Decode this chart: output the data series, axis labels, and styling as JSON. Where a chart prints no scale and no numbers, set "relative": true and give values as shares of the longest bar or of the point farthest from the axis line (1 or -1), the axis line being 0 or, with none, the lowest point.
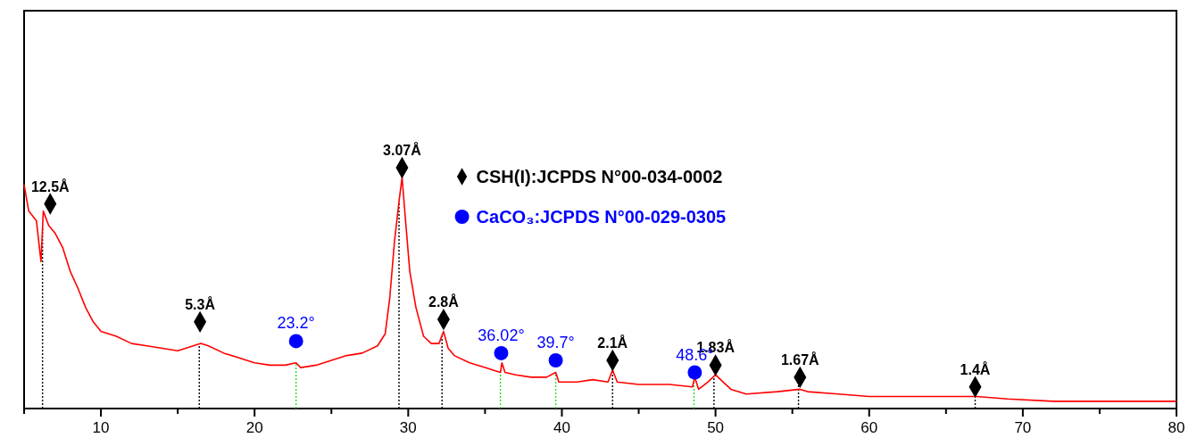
{
  "chart_data": {
    "type": "line",
    "relative": true,
    "xlim": [
      5,
      80
    ],
    "xticks": [
      {
        "value": 5,
        "label": null
      },
      10,
      {
        "value": 15,
        "label": null
      },
      20,
      {
        "value": 25,
        "label": null
      },
      30,
      {
        "value": 35,
        "label": null
      },
      40,
      {
        "value": 45,
        "label": null
      },
      50,
      {
        "value": 55,
        "label": null
      },
      60,
      {
        "value": 65,
        "label": null
      },
      70,
      {
        "value": 75,
        "label": null
      },
      80
    ],
    "grid": false,
    "legend": "top",
    "series": [
      {
        "color": "#ff0000",
        "x": [
          5,
          5.3,
          5.8,
          6.1,
          6.25,
          6.6,
          7,
          7.5,
          8,
          8.5,
          9,
          9.5,
          10,
          11,
          12,
          13,
          14,
          15,
          16,
          16.5,
          17,
          18,
          19,
          20,
          21,
          22,
          22.7,
          23,
          24,
          25,
          26,
          27,
          28,
          28.5,
          28.8,
          29.1,
          29.4,
          29.6,
          29.8,
          30.1,
          30.5,
          31,
          31.5,
          32,
          32.3,
          32.6,
          33,
          34,
          35,
          36,
          36.1,
          36.3,
          37,
          38,
          39,
          39.6,
          39.8,
          41,
          42,
          43,
          43.3,
          43.6,
          45,
          47,
          48.5,
          48.65,
          48.9,
          49.5,
          50,
          50.5,
          51,
          52,
          54,
          55.5,
          56,
          58,
          60,
          62,
          65,
          67,
          69,
          72,
          76,
          80
        ],
        "values": [
          0.93,
          0.82,
          0.78,
          0.61,
          0.82,
          0.76,
          0.73,
          0.67,
          0.57,
          0.5,
          0.42,
          0.36,
          0.32,
          0.3,
          0.27,
          0.26,
          0.25,
          0.24,
          0.26,
          0.27,
          0.26,
          0.23,
          0.21,
          0.19,
          0.18,
          0.18,
          0.19,
          0.17,
          0.18,
          0.2,
          0.22,
          0.23,
          0.26,
          0.31,
          0.46,
          0.69,
          0.86,
          0.96,
          0.8,
          0.57,
          0.42,
          0.3,
          0.27,
          0.27,
          0.32,
          0.25,
          0.22,
          0.19,
          0.17,
          0.15,
          0.19,
          0.15,
          0.14,
          0.13,
          0.13,
          0.15,
          0.11,
          0.11,
          0.12,
          0.11,
          0.16,
          0.11,
          0.1,
          0.1,
          0.09,
          0.13,
          0.08,
          0.11,
          0.14,
          0.11,
          0.08,
          0.06,
          0.07,
          0.08,
          0.07,
          0.06,
          0.05,
          0.05,
          0.05,
          0.05,
          0.04,
          0.03,
          0.03,
          0.03
        ]
      },
      {
        "type": "scatter",
        "name": "CSH(I):JCPDS N°00-034-0002",
        "color": "#000000",
        "marker": "diamond",
        "x": [
          6.7,
          16.45,
          29.6,
          32.3,
          43.3,
          50.0,
          55.5,
          66.9
        ],
        "values": [
          0.85,
          0.36,
          1,
          0.37,
          0.2,
          0.18,
          0.13,
          0.09
        ]
      },
      {
        "type": "scatter",
        "name": "CaCO₃:JCPDS N°00-029-0305",
        "color": "#0000ff",
        "marker": "circle",
        "x": [
          22.7,
          36.05,
          39.6,
          48.65
        ],
        "values": [
          0.28,
          0.23,
          0.2,
          0.15
        ]
      }
    ],
    "annotations": [
      {
        "text": "12.5Å",
        "x": 6.7,
        "y": 0.85
      },
      {
        "text": "5.3Å",
        "x": 16.45,
        "y": 0.36
      },
      {
        "text": "3.07Å",
        "x": 29.6,
        "y": 1
      },
      {
        "text": "2.8Å",
        "x": 32.3,
        "y": 0.37
      },
      {
        "text": "2.1Å",
        "x": 43.3,
        "y": 0.2
      },
      {
        "text": "1.83Å",
        "x": 50.0,
        "y": 0.18
      },
      {
        "text": "1.67Å",
        "x": 55.5,
        "y": 0.13
      },
      {
        "text": "1.4Å",
        "x": 66.9,
        "y": 0.09
      },
      {
        "text": "23.2°",
        "x": 22.7,
        "y": 0.28
      },
      {
        "text": "36.02°",
        "x": 36.05,
        "y": 0.23
      },
      {
        "text": "39.7°",
        "x": 39.6,
        "y": 0.2
      },
      {
        "text": "48.6°",
        "x": 48.65,
        "y": 0.15
      }
    ],
    "ref_lines": [
      {
        "axis": "x",
        "value": 6.2,
        "color": "#000000",
        "line_style": "dotted"
      },
      {
        "axis": "x",
        "value": 16.4,
        "color": "#000000",
        "line_style": "dotted"
      },
      {
        "axis": "x",
        "value": 29.4,
        "color": "#000000",
        "line_style": "dotted"
      },
      {
        "axis": "x",
        "value": 32.2,
        "color": "#000000",
        "line_style": "dotted"
      },
      {
        "axis": "x",
        "value": 43.3,
        "color": "#000000",
        "line_style": "dotted"
      },
      {
        "axis": "x",
        "value": 49.9,
        "color": "#000000",
        "line_style": "dotted"
      },
      {
        "axis": "x",
        "value": 55.4,
        "color": "#000000",
        "line_style": "dotted"
      },
      {
        "axis": "x",
        "value": 66.9,
        "color": "#000000",
        "line_style": "dotted"
      },
      {
        "axis": "x",
        "value": 22.7,
        "color": "#22dd22",
        "line_style": "dotted"
      },
      {
        "axis": "x",
        "value": 36.0,
        "color": "#22dd22",
        "line_style": "dotted"
      },
      {
        "axis": "x",
        "value": 39.6,
        "color": "#22dd22",
        "line_style": "dotted"
      },
      {
        "axis": "x",
        "value": 48.6,
        "color": "#22dd22",
        "line_style": "dotted"
      }
    ]
  }
}
